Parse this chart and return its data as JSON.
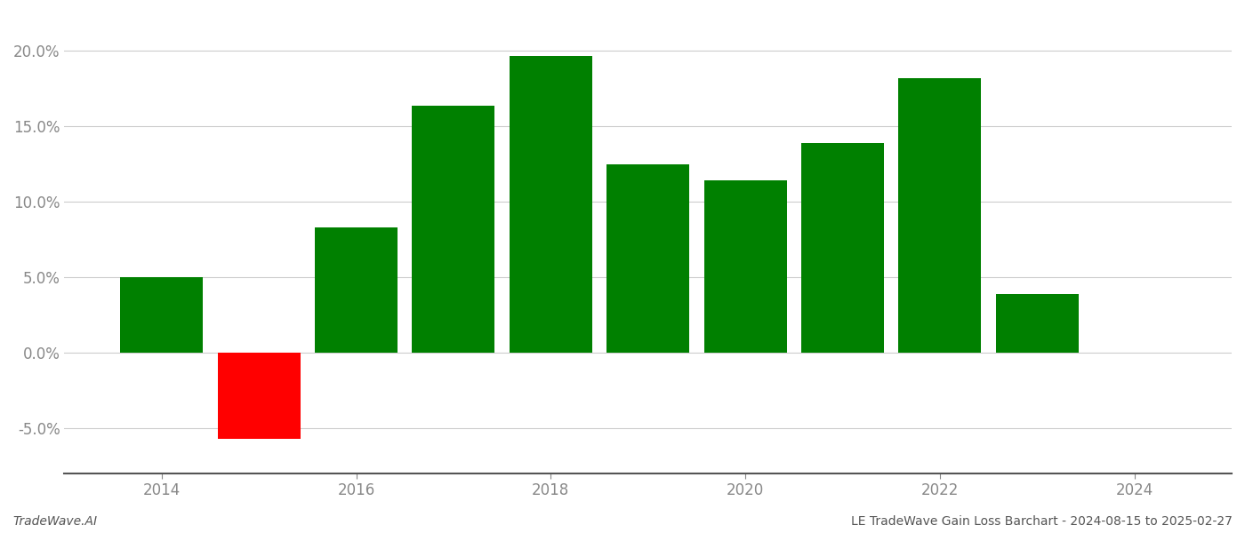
{
  "years": [
    2014,
    2015,
    2016,
    2017,
    2018,
    2019,
    2020,
    2021,
    2022,
    2023
  ],
  "values": [
    0.05,
    -0.057,
    0.083,
    0.164,
    0.197,
    0.125,
    0.114,
    0.139,
    0.182,
    0.039
  ],
  "colors": [
    "#008000",
    "#ff0000",
    "#008000",
    "#008000",
    "#008000",
    "#008000",
    "#008000",
    "#008000",
    "#008000",
    "#008000"
  ],
  "ylim": [
    -0.08,
    0.225
  ],
  "yticks": [
    -0.05,
    0.0,
    0.05,
    0.1,
    0.15,
    0.2
  ],
  "tick_fontsize": 12,
  "footer_left": "TradeWave.AI",
  "footer_right": "LE TradeWave Gain Loss Barchart - 2024-08-15 to 2025-02-27",
  "bar_width": 0.85,
  "xlim_left": 2013.0,
  "xlim_right": 2025.0,
  "xticks": [
    2014,
    2016,
    2018,
    2020,
    2022,
    2024
  ],
  "background_color": "#ffffff",
  "grid_color": "#cccccc",
  "axis_color": "#555555",
  "tick_color": "#888888"
}
